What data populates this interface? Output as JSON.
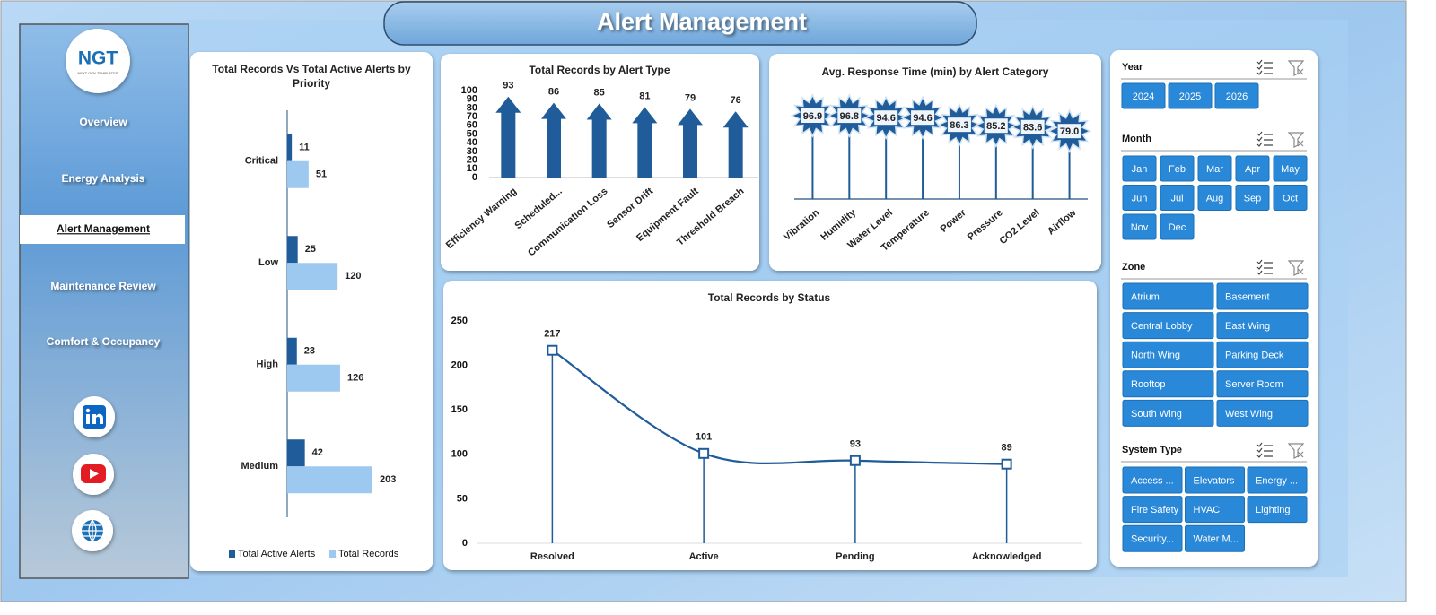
{
  "header": {
    "title": "Alert Management"
  },
  "logo": {
    "text": "NGT",
    "tagline": "NEXT GEN TEMPLATES"
  },
  "nav": [
    "Overview",
    "Energy Analysis",
    "Alert Management",
    "Maintenance Review",
    "Comfort & Occupancy"
  ],
  "chart_data": [
    {
      "type": "hbar",
      "title": "Total Records Vs Total Active Alerts by Priority",
      "categories": [
        "Critical",
        "Low",
        "High",
        "Medium"
      ],
      "series": [
        {
          "name": "Total Active Alerts",
          "color": "#1f5c99",
          "values": [
            11,
            25,
            23,
            42
          ]
        },
        {
          "name": "Total Records",
          "color": "#9dc9f0",
          "values": [
            51,
            120,
            126,
            203
          ]
        }
      ],
      "legend": "bottom"
    },
    {
      "type": "bar",
      "title": "Total Records by Alert Type",
      "categories": [
        "Efficiency Warning",
        "Scheduled...",
        "Communication Loss",
        "Sensor Drift",
        "Equipment Fault",
        "Threshold Breach"
      ],
      "values": [
        93,
        86,
        85,
        81,
        79,
        76
      ],
      "color": "#1f5c99",
      "ylim": [
        0,
        100
      ],
      "yticks": [
        0,
        10,
        20,
        30,
        40,
        50,
        60,
        70,
        80,
        90,
        100
      ]
    },
    {
      "type": "lollipop",
      "title": "Avg. Response Time (min) by Alert Category",
      "categories": [
        "Vibration",
        "Humidity",
        "Water Level",
        "Temperature",
        "Power",
        "Pressure",
        "CO2 Level",
        "Airflow"
      ],
      "values": [
        96.9,
        96.8,
        94.6,
        94.6,
        86.3,
        85.2,
        83.6,
        79
      ],
      "value_labels": [
        "96.9",
        "96.8",
        "94.6",
        "94.6",
        "86.3",
        "85.2",
        "83.6",
        "79.0"
      ],
      "color": "#1f5c99"
    },
    {
      "type": "line",
      "title": "Total Records by Status",
      "categories": [
        "Resolved",
        "Active",
        "Pending",
        "Acknowledged"
      ],
      "values": [
        217,
        101,
        93,
        89
      ],
      "color": "#1f5c99",
      "smooth": true,
      "ylim": [
        0,
        250
      ],
      "yticks": [
        0,
        50,
        100,
        150,
        200,
        250
      ]
    }
  ],
  "slicers": [
    {
      "title": "Year",
      "items": [
        "2024",
        "2025",
        "2026"
      ]
    },
    {
      "title": "Month",
      "items": [
        "Jan",
        "Feb",
        "Mar",
        "Apr",
        "May",
        "Jun",
        "Jul",
        "Aug",
        "Sep",
        "Oct",
        "Nov",
        "Dec"
      ]
    },
    {
      "title": "Zone",
      "items": [
        "Atrium",
        "Basement",
        "Central Lobby",
        "East Wing",
        "North Wing",
        "Parking Deck",
        "Rooftop",
        "Server Room",
        "South Wing",
        "West Wing"
      ]
    },
    {
      "title": "System Type",
      "items": [
        "Access ...",
        "Elevators",
        "Energy ...",
        "Fire Safety",
        "HVAC",
        "Lighting",
        "Security...",
        "Water M..."
      ]
    }
  ]
}
